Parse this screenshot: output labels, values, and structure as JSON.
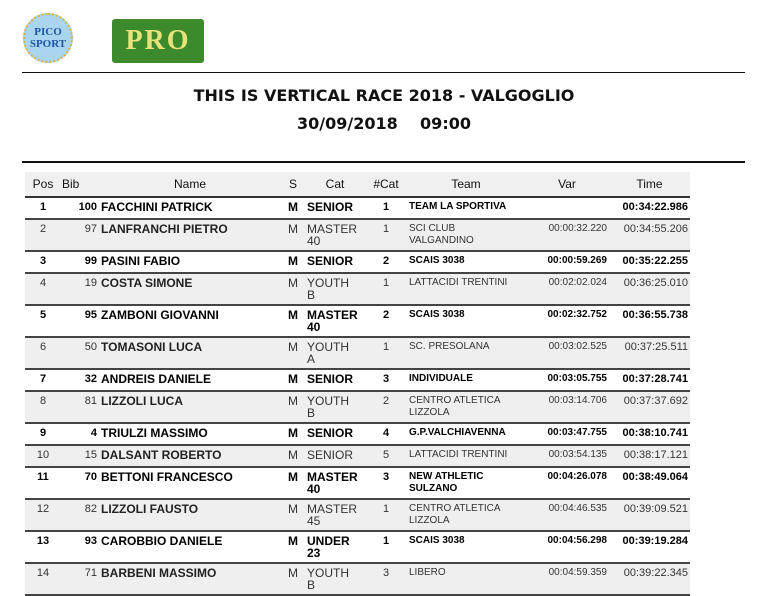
{
  "logos": {
    "left": "PICO SPORT",
    "left_lines": [
      "PICO",
      "SPORT"
    ],
    "right": "PRO"
  },
  "header": {
    "title": "THIS IS VERTICAL RACE 2018 - VALGOGLIO",
    "date": "30/09/2018",
    "time": "09:00"
  },
  "table": {
    "columns": [
      "Pos",
      "Bib",
      "Name",
      "S",
      "Cat",
      "#Cat",
      "Team",
      "Var",
      "Time"
    ],
    "rows": [
      {
        "pos": "1",
        "bib": "100",
        "name": "FACCHINI PATRICK",
        "s": "M",
        "cat": "SENIOR",
        "ncat": "1",
        "team": "TEAM  LA SPORTIVA",
        "var": "",
        "time": "00:34:22.986"
      },
      {
        "pos": "2",
        "bib": "97",
        "name": "LANFRANCHI PIETRO",
        "s": "M",
        "cat": "MASTER\n40",
        "ncat": "1",
        "team": "SCI CLUB\nVALGANDINO",
        "var": "00:00:32.220",
        "time": "00:34:55.206"
      },
      {
        "pos": "3",
        "bib": "99",
        "name": "PASINI FABIO",
        "s": "M",
        "cat": "SENIOR",
        "ncat": "2",
        "team": "SCAIS 3038",
        "var": "00:00:59.269",
        "time": "00:35:22.255"
      },
      {
        "pos": "4",
        "bib": "19",
        "name": "COSTA SIMONE",
        "s": "M",
        "cat": "YOUTH\nB",
        "ncat": "1",
        "team": "LATTACIDI TRENTINI",
        "var": "00:02:02.024",
        "time": "00:36:25.010"
      },
      {
        "pos": "5",
        "bib": "95",
        "name": "ZAMBONI GIOVANNI",
        "s": "M",
        "cat": "MASTER\n40",
        "ncat": "2",
        "team": "SCAIS 3038",
        "var": "00:02:32.752",
        "time": "00:36:55.738"
      },
      {
        "pos": "6",
        "bib": "50",
        "name": "TOMASONI LUCA",
        "s": "M",
        "cat": "YOUTH\nA",
        "ncat": "1",
        "team": "SC. PRESOLANA",
        "var": "00:03:02.525",
        "time": "00:37:25.511"
      },
      {
        "pos": "7",
        "bib": "32",
        "name": "ANDREIS DANIELE",
        "s": "M",
        "cat": "SENIOR",
        "ncat": "3",
        "team": "INDIVIDUALE",
        "var": "00:03:05.755",
        "time": "00:37:28.741"
      },
      {
        "pos": "8",
        "bib": "81",
        "name": "LIZZOLI LUCA",
        "s": "M",
        "cat": "YOUTH\nB",
        "ncat": "2",
        "team": "CENTRO ATLETICA\nLIZZOLA",
        "var": "00:03:14.706",
        "time": "00:37:37.692"
      },
      {
        "pos": "9",
        "bib": "4",
        "name": "TRIULZI MASSIMO",
        "s": "M",
        "cat": "SENIOR",
        "ncat": "4",
        "team": "G.P.VALCHIAVENNA",
        "var": "00:03:47.755",
        "time": "00:38:10.741"
      },
      {
        "pos": "10",
        "bib": "15",
        "name": "DALSANT ROBERTO",
        "s": "M",
        "cat": "SENIOR",
        "ncat": "5",
        "team": "LATTACIDI TRENTINI",
        "var": "00:03:54.135",
        "time": "00:38:17.121"
      },
      {
        "pos": "11",
        "bib": "70",
        "name": "BETTONI FRANCESCO",
        "s": "M",
        "cat": "MASTER\n40",
        "ncat": "3",
        "team": "NEW ATHLETIC\nSULZANO",
        "var": "00:04:26.078",
        "time": "00:38:49.064"
      },
      {
        "pos": "12",
        "bib": "82",
        "name": "LIZZOLI FAUSTO",
        "s": "M",
        "cat": "MASTER\n45",
        "ncat": "1",
        "team": "CENTRO ATLETICA\nLIZZOLA",
        "var": "00:04:46.535",
        "time": "00:39:09.521"
      },
      {
        "pos": "13",
        "bib": "93",
        "name": "CAROBBIO DANIELE",
        "s": "M",
        "cat": "UNDER\n23",
        "ncat": "1",
        "team": "SCAIS 3038",
        "var": "00:04:56.298",
        "time": "00:39:19.284"
      },
      {
        "pos": "14",
        "bib": "71",
        "name": "BARBENI MASSIMO",
        "s": "M",
        "cat": "YOUTH\nB",
        "ncat": "3",
        "team": "LIBERO",
        "var": "00:04:59.359",
        "time": "00:39:22.345"
      }
    ]
  }
}
